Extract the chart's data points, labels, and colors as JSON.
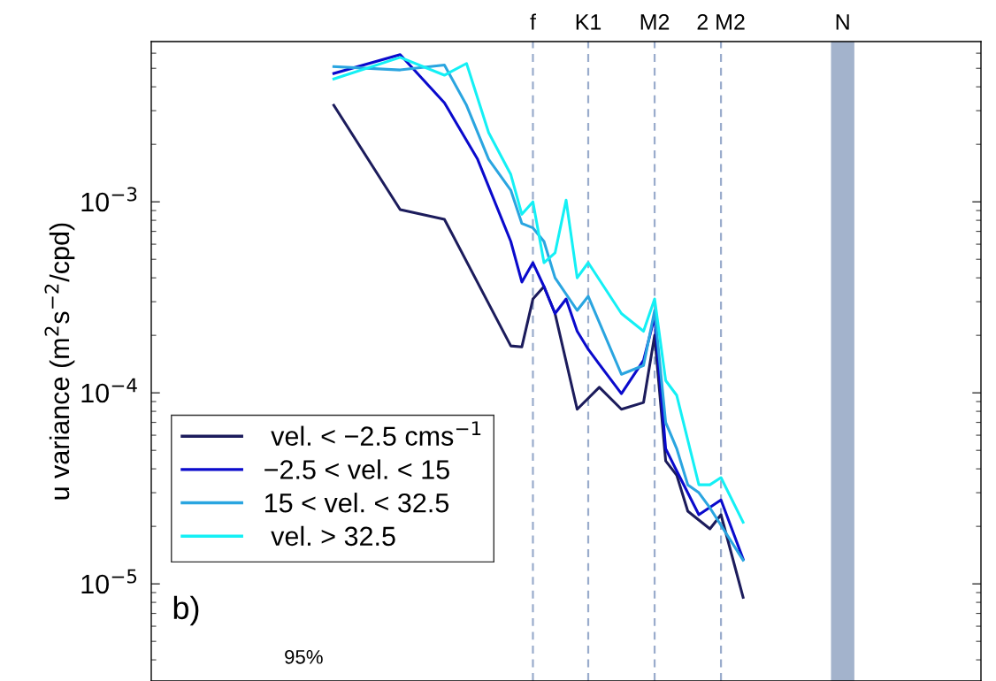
{
  "chart_data": {
    "type": "line",
    "ylabel": "u variance (m$^{2}$s$^{−2}$/cpd)",
    "categories": [
      null,
      null,
      null,
      null,
      null,
      null,
      null,
      null,
      null,
      null,
      null,
      null,
      null,
      null,
      null,
      null,
      null,
      null,
      null,
      null,
      null,
      null,
      null,
      null,
      null,
      null,
      null,
      null,
      null,
      null,
      null,
      null,
      null,
      null,
      "f",
      null,
      null,
      null,
      null,
      "K1",
      null,
      null,
      null,
      null,
      null,
      "M2",
      null,
      null,
      null,
      null,
      null,
      "2 M2",
      null,
      null,
      null,
      null,
      null,
      null,
      null,
      null,
      null,
      null,
      "N",
      null,
      null,
      null,
      null,
      null,
      null,
      null,
      null,
      null,
      null,
      null,
      null
    ],
    "series": [
      {
        "name": " vel. < −2.5 cms$^{−1}$",
        "color": "#1c1c5c",
        "values": [
          null,
          null,
          null,
          null,
          null,
          null,
          null,
          null,
          null,
          null,
          null,
          null,
          null,
          null,
          null,
          null,
          0.0032,
          null,
          null,
          null,
          null,
          null,
          0.00091,
          null,
          null,
          null,
          0.00081,
          null,
          null,
          null,
          null,
          null,
          0.000176,
          0.000174,
          0.00031,
          0.00036,
          0.00026,
          null,
          8.2e-05,
          null,
          0.000107,
          null,
          8.2e-05,
          null,
          8.9e-05,
          0.0002,
          4.4e-05,
          3.7e-05,
          2.4e-05,
          null,
          1.94e-05,
          2.3e-05,
          null,
          8.5e-06,
          null,
          null,
          null,
          null,
          null,
          null,
          null,
          null,
          null,
          null,
          null,
          null,
          null,
          null,
          null,
          null,
          null,
          null,
          null,
          null,
          null
        ]
      },
      {
        "name": "−2.5 < vel. < 15",
        "color": "#0a0acc",
        "values": [
          null,
          null,
          null,
          null,
          null,
          null,
          null,
          null,
          null,
          null,
          null,
          null,
          null,
          null,
          null,
          null,
          0.0047,
          null,
          null,
          null,
          null,
          null,
          0.0059,
          null,
          null,
          null,
          0.0033,
          null,
          null,
          0.00167,
          null,
          null,
          0.00062,
          0.00038,
          0.00048,
          0.00036,
          0.00026,
          0.00031,
          0.00021,
          0.000169,
          0.000141,
          null,
          9.9e-05,
          null,
          0.000148,
          0.00025,
          5.1e-05,
          3.9e-05,
          null,
          2.3e-05,
          null,
          2.75e-05,
          null,
          1.35e-05,
          null,
          null,
          null,
          null,
          null,
          null,
          null,
          null,
          null,
          null,
          null,
          null,
          null,
          null,
          null,
          null,
          null,
          null,
          null,
          null,
          null
        ]
      },
      {
        "name": "15 < vel. < 32.5",
        "color": "#2aa5e0",
        "values": [
          null,
          null,
          null,
          null,
          null,
          null,
          null,
          null,
          null,
          null,
          null,
          null,
          null,
          null,
          null,
          null,
          0.0051,
          null,
          null,
          null,
          null,
          null,
          0.0049,
          null,
          null,
          null,
          0.0052,
          null,
          0.0032,
          null,
          0.00167,
          null,
          0.00115,
          0.00077,
          0.00073,
          0.00062,
          0.0004,
          null,
          0.00027,
          0.00032,
          null,
          null,
          0.000125,
          null,
          0.000139,
          0.00027,
          7e-05,
          5.1e-05,
          3.3e-05,
          3e-05,
          2.5e-05,
          null,
          null,
          1.33e-05,
          null,
          null,
          null,
          null,
          null,
          null,
          null,
          null,
          null,
          null,
          null,
          null,
          null,
          null,
          null,
          null,
          null,
          null,
          null,
          null,
          null
        ]
      },
      {
        "name": " vel. > 32.5",
        "color": "#14f0f5",
        "values": [
          null,
          null,
          null,
          null,
          null,
          null,
          null,
          null,
          null,
          null,
          null,
          null,
          null,
          null,
          null,
          null,
          0.0044,
          null,
          null,
          null,
          null,
          null,
          0.0057,
          null,
          null,
          null,
          0.0046,
          null,
          0.0053,
          null,
          0.0023,
          null,
          0.00139,
          0.00086,
          0.001,
          0.00048,
          0.00054,
          0.00102,
          0.0004,
          0.00048,
          null,
          null,
          0.00026,
          null,
          0.00021,
          0.00031,
          0.000116,
          9.7e-05,
          null,
          3.3e-05,
          3.3e-05,
          3.6e-05,
          null,
          2.1e-05,
          null,
          null,
          null,
          null,
          null,
          null,
          null,
          null,
          null,
          null,
          null,
          null,
          null,
          null,
          null,
          null,
          null,
          null,
          null,
          null,
          null
        ]
      }
    ],
    "log": "y",
    "ylim": [
      3.1e-06,
      0.0069
    ],
    "yticks": [
      {
        "value": 0.001,
        "label": "10$^{−3}$"
      },
      {
        "value": 0.0001,
        "label": "10$^{−4}$"
      },
      {
        "value": 1e-05,
        "label": "10$^{−5}$"
      }
    ],
    "ref_lines": [
      {
        "axis": "x",
        "value": "f",
        "color": "#9aaccc",
        "line_style": "dashed"
      },
      {
        "axis": "x",
        "value": "K1",
        "color": "#9aaccc",
        "line_style": "dashed"
      },
      {
        "axis": "x",
        "value": "M2",
        "color": "#9aaccc",
        "line_style": "dashed"
      },
      {
        "axis": "x",
        "value": "2 M2",
        "color": "#9aaccc",
        "line_style": "dashed"
      },
      {
        "axis": "x",
        "value": "N",
        "color": "#a3b3cc",
        "line_style": "solid"
      }
    ],
    "annotations": [
      "b)",
      "95%"
    ],
    "legend": "bottom left",
    "grid": false,
    "line_style": "solid",
    "marker": "none"
  }
}
